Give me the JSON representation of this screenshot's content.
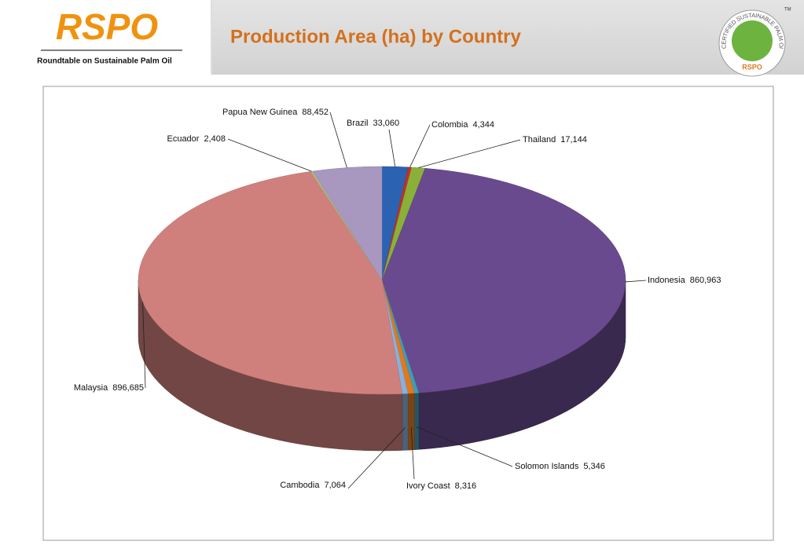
{
  "header": {
    "logo": "RSPO",
    "tagline": "Roundtable on Sustainable Palm Oil",
    "badge_text": "CERTIFIED SUSTAINABLE PALM OIL",
    "badge_logo": "RSPO",
    "trademark": "TM"
  },
  "chart_data": {
    "type": "pie",
    "title": "Production Area (ha) by Country",
    "categories": [
      "Brazil",
      "Colombia",
      "Thailand",
      "Indonesia",
      "Solomon Islands",
      "Ivory Coast",
      "Cambodia",
      "Malaysia",
      "Ecuador",
      "Papua New Guinea"
    ],
    "values": [
      33060,
      4344,
      17144,
      860963,
      5346,
      8316,
      7064,
      896685,
      2408,
      88452
    ],
    "value_labels": [
      "33,060",
      "4,344",
      "17,144",
      "860,963",
      "5,346",
      "8,316",
      "7,064",
      "896,685",
      "2,408",
      "88,452"
    ],
    "colors": [
      "#2b63b2",
      "#c0302a",
      "#8ab03a",
      "#6a4a8e",
      "#3aa0b8",
      "#e07820",
      "#8ab0d8",
      "#d0807c",
      "#a8c880",
      "#a898c0"
    ]
  }
}
